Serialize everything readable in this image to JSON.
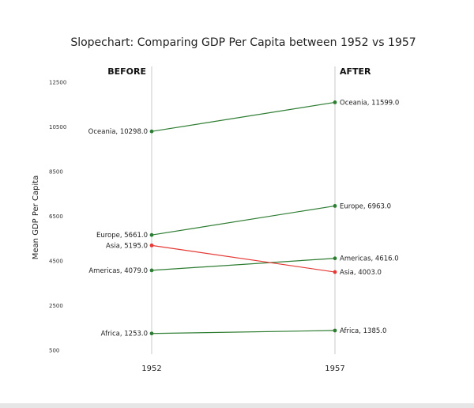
{
  "chart_data": {
    "type": "line",
    "title": "Slopechart: Comparing GDP Per Capita between 1952 vs 1957",
    "ylabel": "Mean GDP Per Capita",
    "xlabel": "",
    "x": [
      "1952",
      "1957"
    ],
    "before_label": "BEFORE",
    "after_label": "AFTER",
    "ylim": [
      500,
      12500
    ],
    "yticks": [
      "12500",
      "10500",
      "8500",
      "6500",
      "4500",
      "2500",
      "500"
    ],
    "ytick_values": [
      12500,
      10500,
      8500,
      6500,
      4500,
      2500,
      500
    ],
    "grid": false,
    "colors": {
      "increase": "#2e7d32",
      "decrease": "#e53935",
      "vline": "#bdbdbd"
    },
    "series": [
      {
        "name": "Africa",
        "values": [
          1253.0,
          1385.0
        ],
        "label_before": "Africa, 1253.0",
        "label_after": "Africa, 1385.0"
      },
      {
        "name": "Americas",
        "values": [
          4079.0,
          4616.0
        ],
        "label_before": "Americas, 4079.0",
        "label_after": "Americas, 4616.0"
      },
      {
        "name": "Asia",
        "values": [
          5195.0,
          4003.0
        ],
        "label_before": "Asia, 5195.0",
        "label_after": "Asia, 4003.0"
      },
      {
        "name": "Europe",
        "values": [
          5661.0,
          6963.0
        ],
        "label_before": "Europe, 5661.0",
        "label_after": "Europe, 6963.0"
      },
      {
        "name": "Oceania",
        "values": [
          10298.0,
          11599.0
        ],
        "label_before": "Oceania, 10298.0",
        "label_after": "Oceania, 11599.0"
      }
    ]
  }
}
